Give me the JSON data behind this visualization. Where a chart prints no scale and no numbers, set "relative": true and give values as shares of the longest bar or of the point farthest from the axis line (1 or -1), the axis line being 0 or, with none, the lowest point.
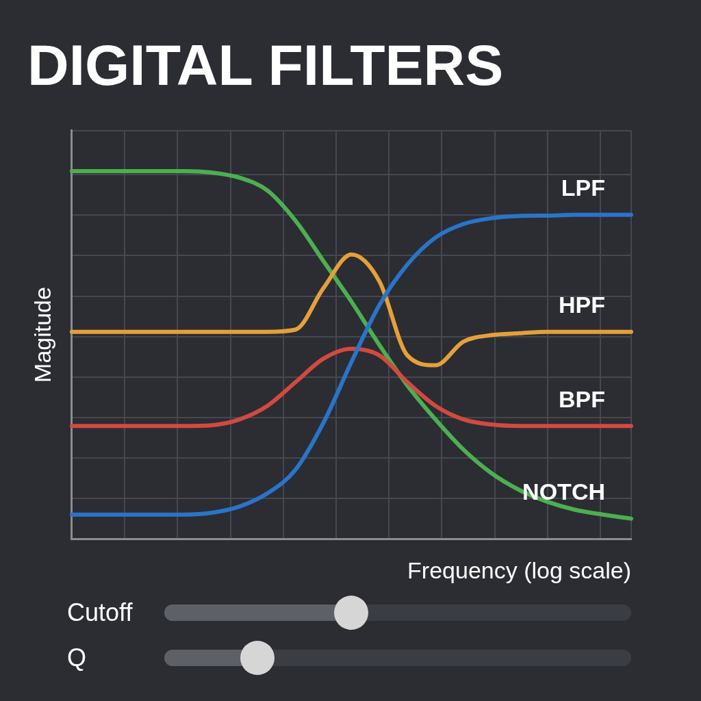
{
  "chart_data": {
    "type": "line",
    "title": "DIGITAL FILTERS",
    "xlabel": "Frequency (log scale)",
    "ylabel": "Magitude",
    "relative": true,
    "grid": true,
    "legend": false,
    "marker": "none",
    "line_style": "solid",
    "categories": [
      null,
      null,
      null,
      null,
      null,
      null,
      null,
      null,
      null,
      null,
      null,
      null,
      null,
      null,
      null,
      null,
      null,
      null,
      null,
      null,
      null
    ],
    "series": [
      {
        "name": "LPF",
        "color": "#2a74c9",
        "values": [
          0.066,
          0.066,
          0.066,
          0.066,
          0.066,
          0.071,
          0.088,
          0.124,
          0.188,
          0.316,
          0.481,
          0.636,
          0.746,
          0.819,
          0.856,
          0.872,
          0.878,
          0.879,
          0.881,
          0.881,
          0.881
        ]
      },
      {
        "name": "HPF",
        "color": "#e5a03a",
        "values": [
          0.563,
          0.563,
          0.563,
          0.563,
          0.563,
          0.563,
          0.563,
          0.563,
          0.569,
          0.682,
          0.773,
          0.7,
          0.499,
          0.472,
          0.536,
          0.554,
          0.559,
          0.563,
          0.563,
          0.563,
          0.563
        ]
      },
      {
        "name": "BPF",
        "color": "#d24a3f",
        "values": [
          0.307,
          0.307,
          0.307,
          0.307,
          0.307,
          0.309,
          0.325,
          0.362,
          0.426,
          0.49,
          0.517,
          0.499,
          0.426,
          0.362,
          0.325,
          0.311,
          0.307,
          0.307,
          0.307,
          0.307,
          0.307
        ]
      },
      {
        "name": "NOTCH",
        "color": "#4caf50",
        "values": [
          1,
          1,
          1,
          1,
          1,
          0.996,
          0.982,
          0.947,
          0.865,
          0.755,
          0.645,
          0.527,
          0.417,
          0.325,
          0.243,
          0.179,
          0.133,
          0.101,
          0.079,
          0.066,
          0.055
        ]
      }
    ],
    "annotations": [
      "Cutoff",
      "Q"
    ]
  }
}
